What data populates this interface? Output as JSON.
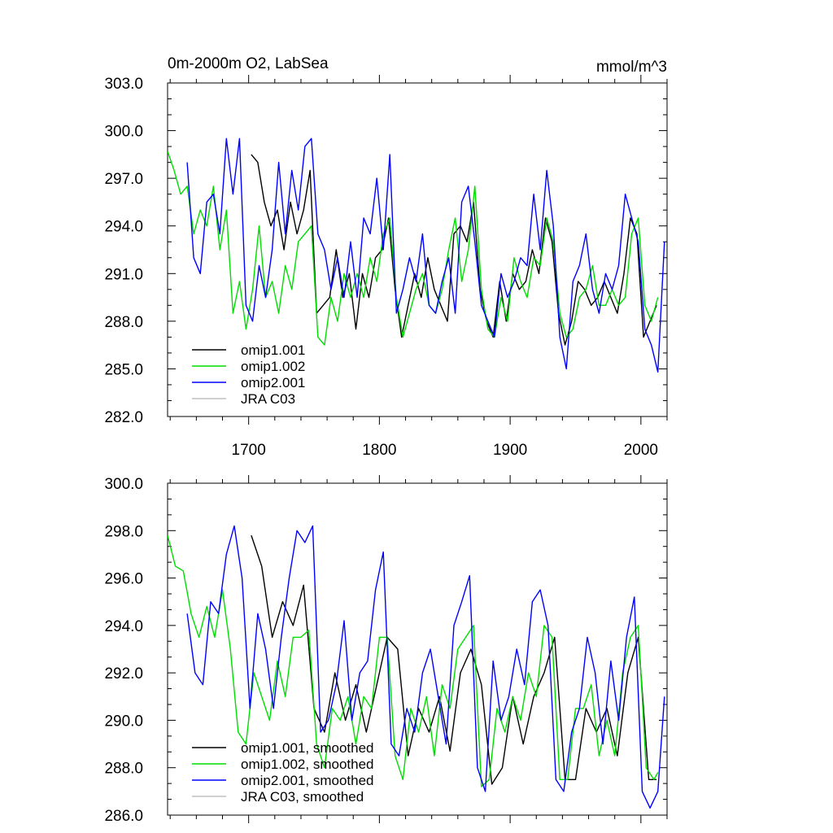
{
  "chart_data": [
    {
      "type": "line",
      "title": "0m-2000m O2, LabSea",
      "units": "mmol/m^3",
      "xlim": [
        1638,
        2020
      ],
      "ylim": [
        282.0,
        303.0
      ],
      "x_ticks": [
        1700,
        1800,
        1900,
        2000
      ],
      "x_tick_labels": [
        "1700",
        "1800",
        "1900",
        "2000"
      ],
      "y_ticks": [
        282.0,
        285.0,
        288.0,
        291.0,
        294.0,
        297.0,
        300.0,
        303.0
      ],
      "y_tick_labels": [
        "282.0",
        "285.0",
        "288.0",
        "291.0",
        "294.0",
        "297.0",
        "300.0",
        "303.0"
      ],
      "legend": {
        "placement": "bottom-left",
        "entries": [
          "omip1.001",
          "omip1.002",
          "omip2.001",
          "JRA C03"
        ]
      },
      "series": [
        {
          "name": "omip1.001",
          "color": "#000000",
          "x": [
            1702,
            1707,
            1712,
            1717,
            1722,
            1727,
            1732,
            1737,
            1742,
            1747,
            1752,
            1757,
            1762,
            1767,
            1772,
            1777,
            1782,
            1787,
            1792,
            1797,
            1802,
            1807,
            1812,
            1817,
            1822,
            1827,
            1832,
            1837,
            1842,
            1847,
            1852,
            1857,
            1862,
            1867,
            1872,
            1877,
            1882,
            1887,
            1892,
            1897,
            1902,
            1907,
            1912,
            1917,
            1922,
            1927,
            1932,
            1937,
            1942,
            1947,
            1952,
            1957,
            1962,
            1967,
            1972,
            1977,
            1982,
            1987,
            1992,
            1997,
            2002,
            2007,
            2012
          ],
          "values": [
            298.5,
            298.0,
            295.5,
            294.0,
            295.0,
            292.5,
            295.5,
            293.5,
            295.0,
            297.5,
            288.5,
            289.0,
            289.5,
            292.5,
            289.5,
            291.0,
            287.5,
            291.0,
            289.5,
            292.0,
            292.5,
            294.5,
            290.0,
            287.0,
            289.0,
            291.0,
            289.5,
            292.0,
            290.0,
            289.0,
            288.0,
            293.5,
            294.0,
            293.0,
            295.5,
            290.0,
            288.0,
            287.0,
            290.5,
            288.0,
            291.0,
            290.0,
            290.5,
            292.5,
            291.0,
            294.5,
            293.0,
            288.5,
            286.5,
            288.0,
            290.5,
            290.0,
            289.0,
            289.5,
            290.5,
            289.5,
            288.5,
            291.0,
            294.5,
            293.5,
            287.0,
            288.0,
            289.0
          ]
        },
        {
          "name": "omip1.002",
          "color": "#00dd00",
          "x": [
            1638,
            1643,
            1648,
            1653,
            1658,
            1663,
            1668,
            1673,
            1678,
            1683,
            1688,
            1693,
            1698,
            1703,
            1708,
            1713,
            1718,
            1723,
            1728,
            1733,
            1738,
            1743,
            1748,
            1753,
            1758,
            1763,
            1768,
            1773,
            1778,
            1783,
            1788,
            1793,
            1798,
            1803,
            1808,
            1813,
            1818,
            1823,
            1828,
            1833,
            1838,
            1843,
            1848,
            1853,
            1858,
            1863,
            1868,
            1873,
            1878,
            1883,
            1888,
            1893,
            1898,
            1903,
            1908,
            1913,
            1918,
            1923,
            1928,
            1933,
            1938,
            1943,
            1948,
            1953,
            1958,
            1963,
            1968,
            1973,
            1978,
            1983,
            1988,
            1993,
            1998,
            2003,
            2008,
            2013
          ],
          "values": [
            298.7,
            297.5,
            296.0,
            296.5,
            293.5,
            295.0,
            294.0,
            296.5,
            292.5,
            295.0,
            288.5,
            290.5,
            287.5,
            290.0,
            294.0,
            289.5,
            290.5,
            288.5,
            291.5,
            290.0,
            293.0,
            293.5,
            294.0,
            287.0,
            286.5,
            289.5,
            288.0,
            291.0,
            289.5,
            291.0,
            289.5,
            292.0,
            290.5,
            293.5,
            294.5,
            289.5,
            287.0,
            288.5,
            290.0,
            291.0,
            289.0,
            288.5,
            290.0,
            292.5,
            294.5,
            290.5,
            292.5,
            296.5,
            290.0,
            287.5,
            287.0,
            289.5,
            288.0,
            292.0,
            290.5,
            289.5,
            292.0,
            291.5,
            294.5,
            293.0,
            288.5,
            287.0,
            287.5,
            289.5,
            290.0,
            291.5,
            289.0,
            289.0,
            290.0,
            289.0,
            289.5,
            293.5,
            294.5,
            289.0,
            288.0,
            289.5
          ]
        },
        {
          "name": "omip2.001",
          "color": "#0000ff",
          "x": [
            1653,
            1658,
            1663,
            1668,
            1673,
            1678,
            1683,
            1688,
            1693,
            1698,
            1703,
            1708,
            1713,
            1718,
            1723,
            1728,
            1733,
            1738,
            1743,
            1748,
            1753,
            1758,
            1763,
            1768,
            1773,
            1778,
            1783,
            1788,
            1793,
            1798,
            1803,
            1808,
            1813,
            1818,
            1823,
            1828,
            1833,
            1838,
            1843,
            1848,
            1853,
            1858,
            1863,
            1868,
            1873,
            1878,
            1883,
            1888,
            1893,
            1898,
            1903,
            1908,
            1913,
            1918,
            1923,
            1928,
            1933,
            1938,
            1943,
            1948,
            1953,
            1958,
            1963,
            1968,
            1973,
            1978,
            1983,
            1988,
            1993,
            1998,
            2003,
            2008,
            2013,
            2018
          ],
          "values": [
            298.0,
            292.0,
            291.0,
            295.5,
            296.0,
            293.5,
            299.5,
            296.0,
            299.5,
            289.0,
            288.0,
            291.5,
            289.5,
            292.5,
            298.0,
            293.5,
            297.5,
            295.0,
            299.0,
            299.5,
            293.5,
            292.5,
            290.0,
            292.0,
            289.5,
            293.0,
            289.5,
            294.5,
            293.5,
            297.0,
            292.5,
            298.5,
            288.5,
            290.0,
            292.0,
            290.5,
            293.5,
            289.0,
            288.5,
            290.5,
            292.0,
            288.5,
            295.5,
            296.5,
            293.0,
            289.0,
            288.0,
            287.0,
            291.0,
            289.5,
            290.5,
            292.0,
            291.5,
            296.0,
            292.5,
            297.5,
            294.0,
            287.0,
            285.0,
            290.5,
            291.5,
            293.5,
            290.0,
            288.5,
            291.0,
            290.0,
            291.5,
            296.0,
            294.5,
            293.0,
            287.5,
            286.5,
            284.8,
            293.0
          ]
        },
        {
          "name": "JRA C03",
          "color": "#c0c0c0",
          "x": [],
          "values": []
        }
      ]
    },
    {
      "type": "line",
      "title": "",
      "xlim": [
        1638,
        2020
      ],
      "ylim": [
        286.0,
        300.0
      ],
      "x_ticks": [
        1700,
        1800,
        1900,
        2000
      ],
      "y_ticks": [
        286.0,
        288.0,
        290.0,
        292.0,
        294.0,
        296.0,
        298.0,
        300.0
      ],
      "y_tick_labels": [
        "286.0",
        "288.0",
        "290.0",
        "292.0",
        "294.0",
        "296.0",
        "298.0",
        "300.0"
      ],
      "legend": {
        "placement": "bottom-left",
        "entries": [
          "omip1.001, smoothed",
          "omip1.002, smoothed",
          "omip2.001, smoothed",
          "JRA C03, smoothed"
        ]
      },
      "series": [
        {
          "name": "omip1.001, smoothed",
          "color": "#000000",
          "x": [
            1702,
            1710,
            1718,
            1726,
            1734,
            1742,
            1750,
            1758,
            1766,
            1774,
            1782,
            1790,
            1798,
            1806,
            1814,
            1822,
            1830,
            1838,
            1846,
            1854,
            1862,
            1870,
            1878,
            1886,
            1894,
            1902,
            1910,
            1918,
            1926,
            1934,
            1942,
            1950,
            1958,
            1966,
            1974,
            1982,
            1990,
            1998,
            2006,
            2012
          ],
          "values": [
            297.8,
            296.5,
            293.5,
            295.0,
            294.0,
            295.7,
            290.5,
            289.5,
            292.0,
            290.0,
            291.5,
            289.5,
            291.5,
            293.5,
            293.0,
            288.5,
            290.5,
            289.5,
            291.0,
            288.7,
            292.0,
            293.0,
            291.5,
            287.3,
            288.0,
            291.0,
            289.0,
            291.0,
            292.0,
            293.5,
            287.5,
            287.5,
            290.5,
            289.5,
            290.5,
            288.5,
            292.0,
            293.5,
            287.5,
            287.5
          ]
        },
        {
          "name": "omip1.002, smoothed",
          "color": "#00dd00",
          "x": [
            1638,
            1644,
            1650,
            1656,
            1662,
            1668,
            1674,
            1680,
            1686,
            1692,
            1698,
            1704,
            1710,
            1716,
            1722,
            1728,
            1734,
            1740,
            1746,
            1752,
            1758,
            1764,
            1770,
            1776,
            1782,
            1788,
            1794,
            1800,
            1806,
            1812,
            1818,
            1824,
            1830,
            1836,
            1842,
            1848,
            1854,
            1860,
            1866,
            1872,
            1878,
            1884,
            1890,
            1896,
            1902,
            1908,
            1914,
            1920,
            1926,
            1932,
            1938,
            1944,
            1950,
            1956,
            1962,
            1968,
            1974,
            1980,
            1986,
            1992,
            1998,
            2004,
            2010,
            2013
          ],
          "values": [
            297.8,
            296.5,
            296.3,
            294.5,
            293.5,
            294.8,
            293.5,
            295.5,
            293.0,
            289.5,
            289.0,
            292.0,
            291.0,
            290.0,
            292.5,
            291.0,
            293.5,
            293.5,
            293.8,
            289.0,
            288.0,
            290.5,
            290.0,
            291.0,
            289.0,
            291.0,
            290.5,
            293.5,
            293.5,
            288.5,
            287.5,
            290.5,
            289.5,
            291.0,
            288.5,
            291.5,
            290.5,
            293.0,
            293.5,
            294.0,
            287.2,
            287.5,
            290.5,
            289.5,
            291.0,
            290.0,
            292.0,
            291.0,
            294.0,
            293.5,
            287.5,
            287.5,
            290.5,
            290.5,
            291.5,
            288.5,
            290.0,
            288.5,
            292.0,
            293.5,
            294.0,
            288.0,
            287.5,
            287.8
          ]
        },
        {
          "name": "omip2.001, smoothed",
          "color": "#0000ff",
          "x": [
            1653,
            1659,
            1665,
            1671,
            1677,
            1683,
            1689,
            1695,
            1701,
            1707,
            1713,
            1719,
            1725,
            1731,
            1737,
            1743,
            1749,
            1755,
            1761,
            1767,
            1773,
            1779,
            1785,
            1791,
            1797,
            1803,
            1809,
            1815,
            1821,
            1827,
            1833,
            1839,
            1845,
            1851,
            1857,
            1863,
            1869,
            1875,
            1881,
            1887,
            1893,
            1899,
            1905,
            1911,
            1917,
            1923,
            1929,
            1935,
            1941,
            1947,
            1953,
            1959,
            1965,
            1971,
            1977,
            1983,
            1989,
            1995,
            2001,
            2007,
            2013,
            2018
          ],
          "values": [
            294.5,
            292.0,
            291.5,
            295.0,
            294.5,
            297.0,
            298.2,
            296.0,
            290.5,
            294.5,
            293.0,
            290.5,
            293.5,
            296.0,
            298.0,
            297.5,
            298.2,
            289.5,
            290.0,
            291.5,
            294.2,
            290.0,
            292.0,
            292.5,
            295.5,
            297.1,
            289.0,
            288.5,
            290.5,
            289.5,
            292.0,
            293.0,
            291.0,
            289.0,
            294.0,
            295.0,
            296.1,
            288.0,
            287.0,
            292.5,
            290.0,
            291.0,
            293.0,
            291.5,
            295.0,
            295.5,
            294.0,
            287.5,
            287.0,
            289.5,
            290.5,
            293.5,
            292.0,
            289.0,
            292.5,
            290.0,
            293.5,
            295.2,
            287.0,
            286.3,
            287.0,
            291.0
          ]
        },
        {
          "name": "JRA C03, smoothed",
          "color": "#c0c0c0",
          "x": [],
          "values": []
        }
      ]
    }
  ]
}
